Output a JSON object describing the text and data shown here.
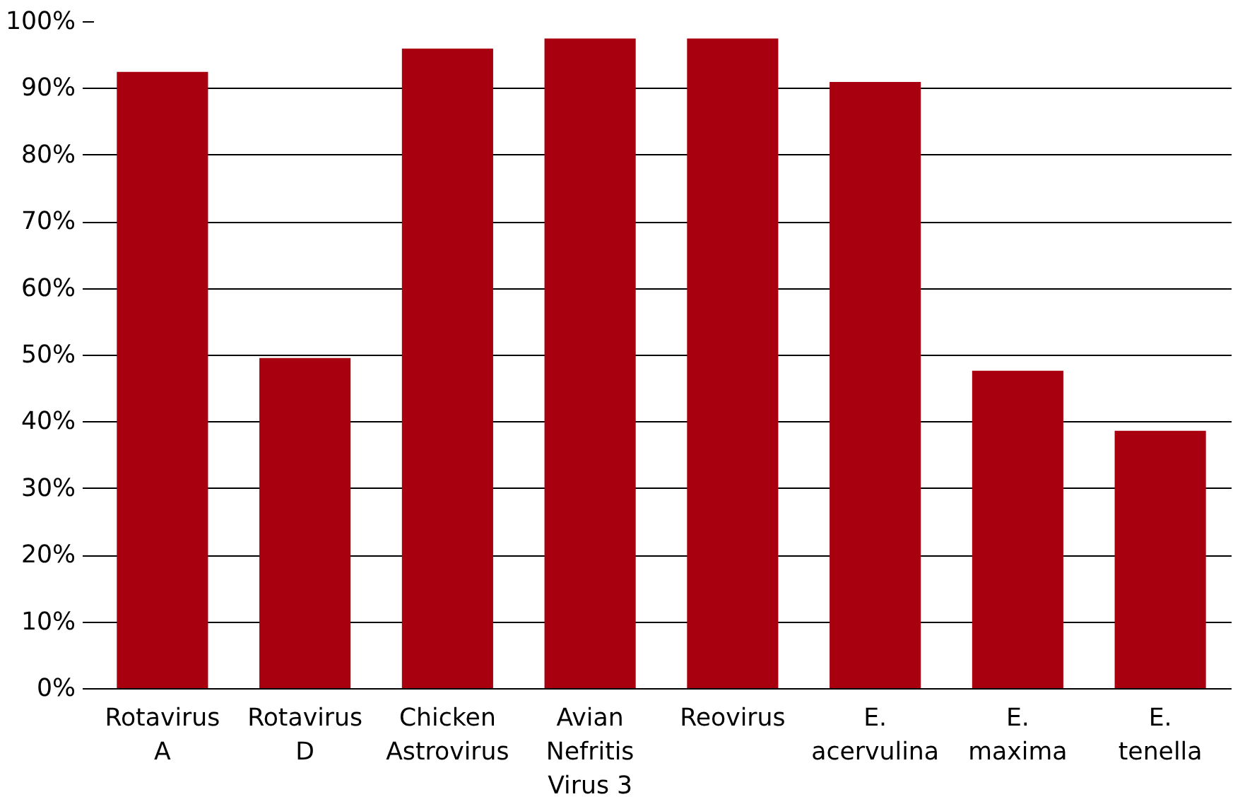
{
  "chart_data": {
    "type": "bar",
    "categories": [
      "Rotavirus\nA",
      "Rotavirus\nD",
      "Chicken\nAstrovirus",
      "Avian\nNefritis\nVirus 3",
      "Reovirus",
      "E.\nacervulina",
      "E.\nmaxima",
      "E.\ntenella"
    ],
    "values": [
      92.5,
      49.6,
      96.0,
      97.5,
      97.5,
      91.0,
      47.7,
      38.7
    ],
    "color": "#a8000f",
    "ylim": [
      0,
      100
    ],
    "yticks": [
      {
        "value": 0,
        "label": "0%"
      },
      {
        "value": 10,
        "label": "10%"
      },
      {
        "value": 20,
        "label": "20%"
      },
      {
        "value": 30,
        "label": "30%"
      },
      {
        "value": 40,
        "label": "40%"
      },
      {
        "value": 50,
        "label": "50%"
      },
      {
        "value": 60,
        "label": "60%"
      },
      {
        "value": 70,
        "label": "70%"
      },
      {
        "value": 80,
        "label": "80%"
      },
      {
        "value": 90,
        "label": "90%"
      },
      {
        "value": 100,
        "label": "100%"
      }
    ],
    "grid": "y"
  }
}
